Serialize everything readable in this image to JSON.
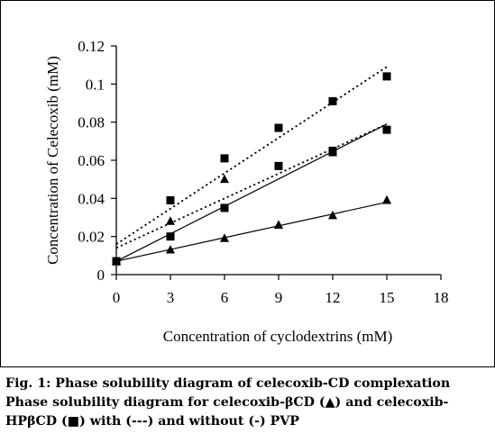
{
  "chart_data": {
    "type": "scatter",
    "xlabel": "Concentration of cyclodextrins (mM)",
    "ylabel": "Concentration of Celecoxib (mM)",
    "xlim": [
      0,
      18
    ],
    "ylim": [
      0,
      0.12
    ],
    "xticks": [
      "0",
      "3",
      "6",
      "9",
      "12",
      "15",
      "18"
    ],
    "yticks": [
      "0",
      "0.02",
      "0.04",
      "0.06",
      "0.08",
      "0.1",
      "0.12"
    ],
    "grid": false,
    "series": [
      {
        "marker": "square",
        "line": "dotted",
        "x": [
          0,
          3,
          6,
          9,
          12,
          15
        ],
        "y": [
          0.007,
          0.039,
          0.061,
          0.077,
          0.091,
          0.104
        ],
        "trend": [
          0.016,
          0.109
        ]
      },
      {
        "marker": "square",
        "line": "dotted",
        "x": [
          0,
          3,
          6,
          9,
          12,
          15
        ],
        "y": [
          0.007,
          0.02,
          0.035,
          0.057,
          0.065,
          0.076
        ],
        "trend": [
          0.014,
          0.079
        ]
      },
      {
        "marker": "triangle",
        "line": "solid",
        "x": [
          0,
          3,
          6,
          9,
          12,
          15
        ],
        "y": [
          0.007,
          0.028,
          0.05,
          0.026,
          0.064,
          0.039
        ],
        "trend": [
          0.007,
          0.079
        ],
        "trend_x": [
          0,
          15
        ]
      },
      {
        "marker": "triangle",
        "line": "solid",
        "x": [
          0,
          3,
          6,
          9,
          12,
          15
        ],
        "y": [
          0.007,
          0.013,
          0.019,
          0.026,
          0.031,
          0.039
        ],
        "trend": [
          0.007,
          0.038
        ]
      }
    ]
  },
  "caption": {
    "line1": "Fig. 1: Phase solubility diagram of celecoxib-CD complexation",
    "line2": "Phase solubility diagram for celecoxib-βCD (▲) and celecoxib-",
    "line3": "HPβCD (■) with (---) and without (-) PVP"
  }
}
